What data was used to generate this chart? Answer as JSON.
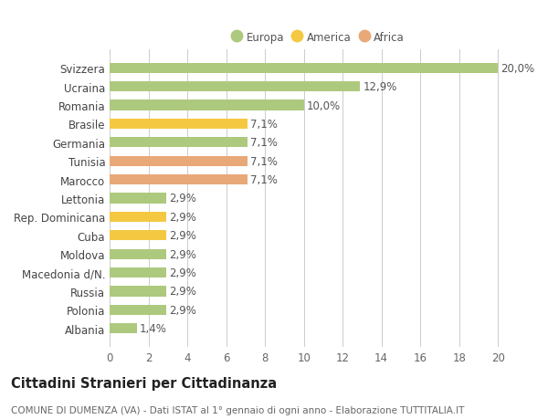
{
  "categories": [
    "Albania",
    "Polonia",
    "Russia",
    "Macedonia d/N.",
    "Moldova",
    "Cuba",
    "Rep. Dominicana",
    "Lettonia",
    "Marocco",
    "Tunisia",
    "Germania",
    "Brasile",
    "Romania",
    "Ucraina",
    "Svizzera"
  ],
  "values": [
    1.4,
    2.9,
    2.9,
    2.9,
    2.9,
    2.9,
    2.9,
    2.9,
    7.1,
    7.1,
    7.1,
    7.1,
    10.0,
    12.9,
    20.0
  ],
  "labels": [
    "1,4%",
    "2,9%",
    "2,9%",
    "2,9%",
    "2,9%",
    "2,9%",
    "2,9%",
    "2,9%",
    "7,1%",
    "7,1%",
    "7,1%",
    "7,1%",
    "10,0%",
    "12,9%",
    "20,0%"
  ],
  "colors": [
    "#adc97e",
    "#adc97e",
    "#adc97e",
    "#adc97e",
    "#adc97e",
    "#f5c842",
    "#f5c842",
    "#adc97e",
    "#e8a878",
    "#e8a878",
    "#adc97e",
    "#f5c842",
    "#adc97e",
    "#adc97e",
    "#adc97e"
  ],
  "legend": [
    {
      "label": "Europa",
      "color": "#adc97e"
    },
    {
      "label": "America",
      "color": "#f5c842"
    },
    {
      "label": "Africa",
      "color": "#e8a878"
    }
  ],
  "xlim": [
    0,
    21.5
  ],
  "xticks": [
    0,
    2,
    4,
    6,
    8,
    10,
    12,
    14,
    16,
    18,
    20
  ],
  "title": "Cittadini Stranieri per Cittadinanza",
  "subtitle": "COMUNE DI DUMENZA (VA) - Dati ISTAT al 1° gennaio di ogni anno - Elaborazione TUTTITALIA.IT",
  "background_color": "#ffffff",
  "grid_color": "#cccccc",
  "bar_height": 0.55,
  "label_fontsize": 8.5,
  "tick_fontsize": 8.5,
  "title_fontsize": 10.5,
  "subtitle_fontsize": 7.5
}
